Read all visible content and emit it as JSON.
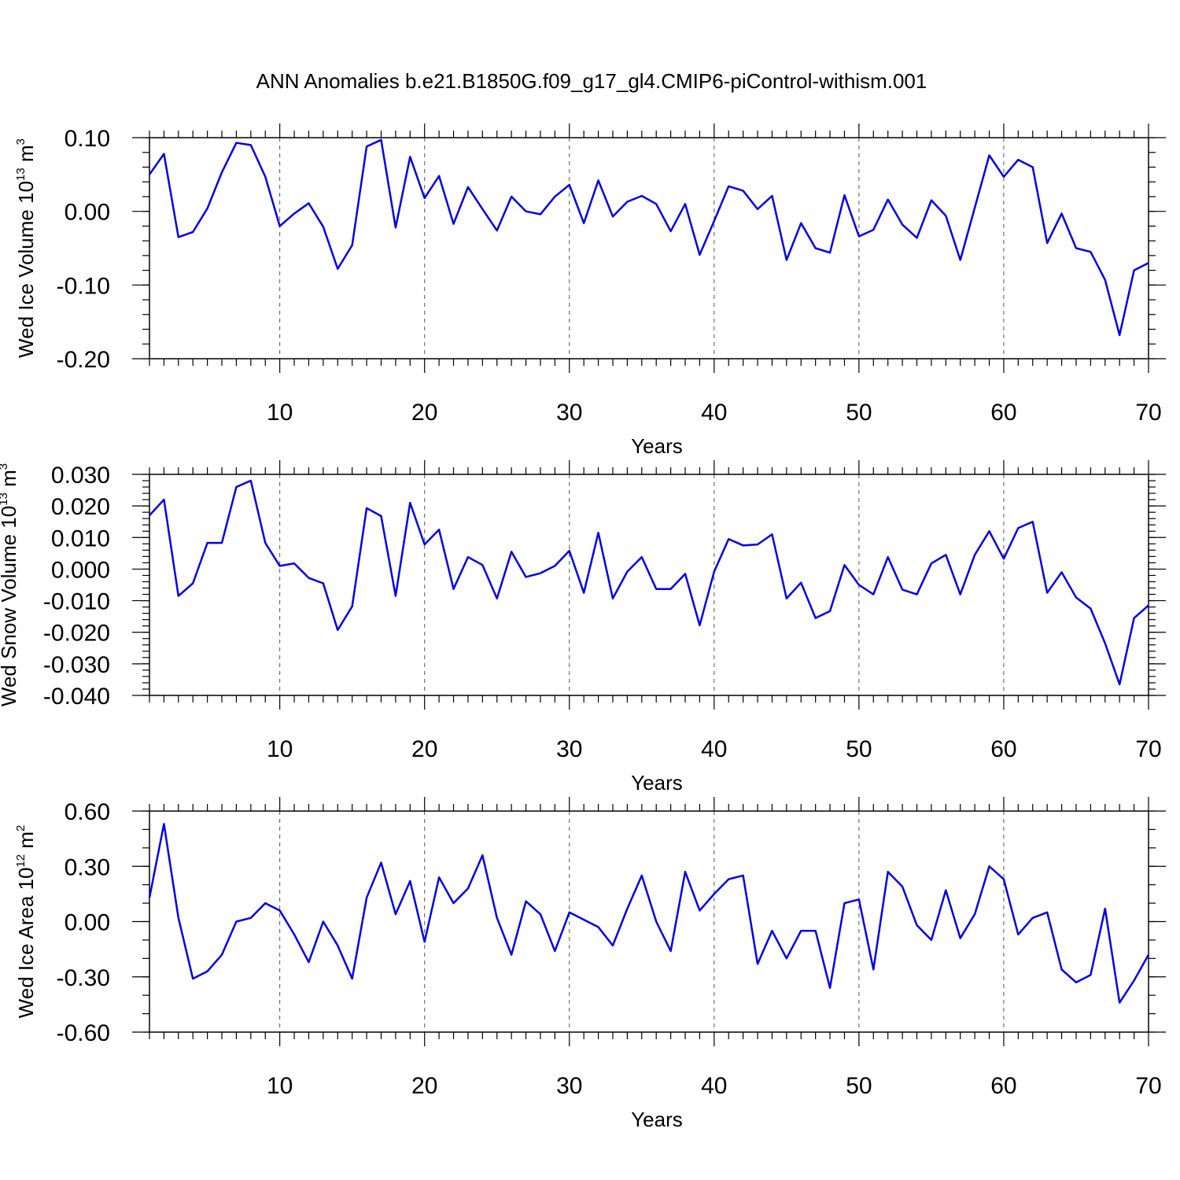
{
  "title": "ANN Anomalies b.e21.B1850G.f09_g17_gl4.CMIP6-piControl-withism.001",
  "line_color": "#0000ee",
  "chart_data": [
    {
      "type": "line",
      "ylabel": "Wed Ice Volume 10",
      "ylabel_sup": "13",
      "ylabel_unit": " m",
      "ylabel_unit_sup": "3",
      "xlabel": "Years",
      "xlim": [
        1,
        70
      ],
      "ylim": [
        -0.2,
        0.1
      ],
      "xticks": [
        10,
        20,
        30,
        40,
        50,
        60,
        70
      ],
      "xtick_labels": [
        "10",
        "20",
        "30",
        "40",
        "50",
        "60",
        "70"
      ],
      "yticks": [
        0.1,
        0.0,
        -0.1,
        -0.2
      ],
      "ytick_labels": [
        "0.10",
        "0.00",
        "-0.10",
        "-0.20"
      ],
      "yminor_step": 0.02,
      "grid_x": true,
      "x": [
        1,
        2,
        3,
        4,
        5,
        6,
        7,
        8,
        9,
        10,
        11,
        12,
        13,
        14,
        15,
        16,
        17,
        18,
        19,
        20,
        21,
        22,
        23,
        24,
        25,
        26,
        27,
        28,
        29,
        30,
        31,
        32,
        33,
        34,
        35,
        36,
        37,
        38,
        39,
        40,
        41,
        42,
        43,
        44,
        45,
        46,
        47,
        48,
        49,
        50,
        51,
        52,
        53,
        54,
        55,
        56,
        57,
        58,
        59,
        60,
        61,
        62,
        63,
        64,
        65,
        66,
        67,
        68,
        69,
        70
      ],
      "values": [
        0.05,
        0.078,
        -0.035,
        -0.028,
        0.004,
        0.053,
        0.093,
        0.09,
        0.047,
        -0.02,
        -0.003,
        0.011,
        -0.021,
        -0.078,
        -0.046,
        0.088,
        0.097,
        -0.022,
        0.074,
        0.018,
        0.048,
        -0.017,
        0.033,
        0.003,
        -0.026,
        0.02,
        0.0,
        -0.004,
        0.02,
        0.036,
        -0.016,
        0.042,
        -0.007,
        0.013,
        0.021,
        0.01,
        -0.027,
        0.01,
        -0.059,
        -0.013,
        0.034,
        0.028,
        0.003,
        0.021,
        -0.066,
        -0.016,
        -0.05,
        -0.056,
        0.022,
        -0.034,
        -0.025,
        0.016,
        -0.018,
        -0.036,
        0.015,
        -0.006,
        -0.066,
        0.005,
        0.076,
        0.047,
        0.07,
        0.06,
        -0.043,
        -0.003,
        -0.05,
        -0.055,
        -0.093,
        -0.168,
        -0.08,
        -0.07
      ]
    },
    {
      "type": "line",
      "ylabel": "Wed Snow Volume 10",
      "ylabel_sup": "13",
      "ylabel_unit": " m",
      "ylabel_unit_sup": "3",
      "xlabel": "Years",
      "xlim": [
        1,
        70
      ],
      "ylim": [
        -0.04,
        0.03
      ],
      "xticks": [
        10,
        20,
        30,
        40,
        50,
        60,
        70
      ],
      "xtick_labels": [
        "10",
        "20",
        "30",
        "40",
        "50",
        "60",
        "70"
      ],
      "yticks": [
        0.03,
        0.02,
        0.01,
        0.0,
        -0.01,
        -0.02,
        -0.03,
        -0.04
      ],
      "ytick_labels": [
        "0.030",
        "0.020",
        "0.010",
        "0.000",
        "-0.010",
        "-0.020",
        "-0.030",
        "-0.040"
      ],
      "yminor_step": 0.002,
      "grid_x": true,
      "x": [
        1,
        2,
        3,
        4,
        5,
        6,
        7,
        8,
        9,
        10,
        11,
        12,
        13,
        14,
        15,
        16,
        17,
        18,
        19,
        20,
        21,
        22,
        23,
        24,
        25,
        26,
        27,
        28,
        29,
        30,
        31,
        32,
        33,
        34,
        35,
        36,
        37,
        38,
        39,
        40,
        41,
        42,
        43,
        44,
        45,
        46,
        47,
        48,
        49,
        50,
        51,
        52,
        53,
        54,
        55,
        56,
        57,
        58,
        59,
        60,
        61,
        62,
        63,
        64,
        65,
        66,
        67,
        68,
        69,
        70
      ],
      "values": [
        0.017,
        0.022,
        -0.0085,
        -0.0045,
        0.0083,
        0.0083,
        0.026,
        0.028,
        0.0083,
        0.001,
        0.0018,
        -0.0028,
        -0.0045,
        -0.0193,
        -0.0118,
        0.0193,
        0.0168,
        -0.0085,
        0.021,
        0.0078,
        0.0125,
        -0.0063,
        0.0038,
        0.0013,
        -0.0093,
        0.0055,
        -0.0025,
        -0.0013,
        0.001,
        0.0058,
        -0.0075,
        0.0115,
        -0.0093,
        -0.0008,
        0.0038,
        -0.0063,
        -0.0063,
        -0.0015,
        -0.0178,
        -0.0008,
        0.0095,
        0.0075,
        0.0078,
        0.011,
        -0.0093,
        -0.0043,
        -0.0155,
        -0.0133,
        0.0013,
        -0.005,
        -0.008,
        0.0038,
        -0.0065,
        -0.008,
        0.0018,
        0.0045,
        -0.008,
        0.0045,
        0.012,
        0.0033,
        0.013,
        0.015,
        -0.0075,
        -0.001,
        -0.009,
        -0.0125,
        -0.0235,
        -0.0365,
        -0.0155,
        -0.0115
      ]
    },
    {
      "type": "line",
      "ylabel": "Wed Ice Area 10",
      "ylabel_sup": "12",
      "ylabel_unit": " m",
      "ylabel_unit_sup": "2",
      "xlabel": "Years",
      "xlim": [
        1,
        70
      ],
      "ylim": [
        -0.6,
        0.6
      ],
      "xticks": [
        10,
        20,
        30,
        40,
        50,
        60,
        70
      ],
      "xtick_labels": [
        "10",
        "20",
        "30",
        "40",
        "50",
        "60",
        "70"
      ],
      "yticks": [
        0.6,
        0.3,
        0.0,
        -0.3,
        -0.6
      ],
      "ytick_labels": [
        "0.60",
        "0.30",
        "0.00",
        "-0.30",
        "-0.60"
      ],
      "yminor_step": 0.1,
      "grid_x": true,
      "x": [
        1,
        2,
        3,
        4,
        5,
        6,
        7,
        8,
        9,
        10,
        11,
        12,
        13,
        14,
        15,
        16,
        17,
        18,
        19,
        20,
        21,
        22,
        23,
        24,
        25,
        26,
        27,
        28,
        29,
        30,
        31,
        32,
        33,
        34,
        35,
        36,
        37,
        38,
        39,
        40,
        41,
        42,
        43,
        44,
        45,
        46,
        47,
        48,
        49,
        50,
        51,
        52,
        53,
        54,
        55,
        56,
        57,
        58,
        59,
        60,
        61,
        62,
        63,
        64,
        65,
        66,
        67,
        68,
        69,
        70
      ],
      "values": [
        0.13,
        0.53,
        0.02,
        -0.31,
        -0.27,
        -0.18,
        0.0,
        0.02,
        0.1,
        0.06,
        -0.07,
        -0.22,
        0.0,
        -0.13,
        -0.31,
        0.13,
        0.32,
        0.04,
        0.22,
        -0.11,
        0.24,
        0.1,
        0.18,
        0.36,
        0.02,
        -0.18,
        0.11,
        0.04,
        -0.16,
        0.05,
        0.01,
        -0.03,
        -0.13,
        0.07,
        0.25,
        0.0,
        -0.16,
        0.27,
        0.06,
        0.15,
        0.23,
        0.25,
        -0.23,
        -0.05,
        -0.2,
        -0.05,
        -0.05,
        -0.36,
        0.1,
        0.12,
        -0.26,
        0.27,
        0.19,
        -0.02,
        -0.1,
        0.17,
        -0.09,
        0.04,
        0.3,
        0.23,
        -0.07,
        0.02,
        0.05,
        -0.26,
        -0.33,
        -0.29,
        0.07,
        -0.44,
        -0.32,
        -0.18
      ]
    }
  ]
}
